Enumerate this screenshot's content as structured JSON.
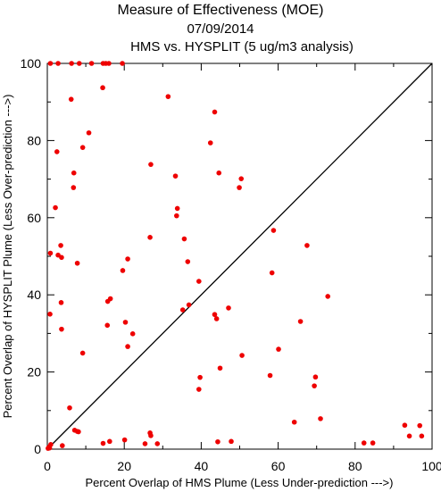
{
  "chart_data": {
    "type": "scatter",
    "title": "Measure of Effectiveness (MOE)",
    "date": "07/09/2014",
    "subtitle": "HMS vs. HYSPLIT  (5 ug/m3 analysis)",
    "xlabel": "Percent Overlap of HMS Plume (Less Under-prediction --->)",
    "ylabel": "Percent Overlap of HYSPLIT Plume (Less Over-prediction --->)",
    "xlim": [
      0,
      100
    ],
    "ylim": [
      0,
      100
    ],
    "x_ticks": [
      "0",
      "20",
      "40",
      "60",
      "80",
      "100"
    ],
    "y_ticks": [
      "0",
      "20",
      "40",
      "60",
      "80",
      "100"
    ],
    "grid": false,
    "reference_line": "diagonal y = x",
    "marker_color": "#ee0000",
    "points": [
      {
        "x": 0.8,
        "y": 100
      },
      {
        "x": 2.8,
        "y": 100
      },
      {
        "x": 6.3,
        "y": 100
      },
      {
        "x": 8.3,
        "y": 100
      },
      {
        "x": 11.5,
        "y": 100
      },
      {
        "x": 14.5,
        "y": 100
      },
      {
        "x": 15.2,
        "y": 100
      },
      {
        "x": 16,
        "y": 100
      },
      {
        "x": 19.5,
        "y": 100
      },
      {
        "x": 6.2,
        "y": 90.7
      },
      {
        "x": 14.4,
        "y": 93.7
      },
      {
        "x": 31.4,
        "y": 91.4
      },
      {
        "x": 43.5,
        "y": 87.4
      },
      {
        "x": 10.8,
        "y": 82
      },
      {
        "x": 42.4,
        "y": 79.4
      },
      {
        "x": 9.2,
        "y": 78.2
      },
      {
        "x": 2.5,
        "y": 77.1
      },
      {
        "x": 26.9,
        "y": 73.8
      },
      {
        "x": 6.9,
        "y": 71.6
      },
      {
        "x": 33.3,
        "y": 70.8
      },
      {
        "x": 44.6,
        "y": 71.6
      },
      {
        "x": 50.4,
        "y": 70.1
      },
      {
        "x": 49.9,
        "y": 67.8
      },
      {
        "x": 6.8,
        "y": 67.8
      },
      {
        "x": 2.1,
        "y": 62.6
      },
      {
        "x": 33.8,
        "y": 62.4
      },
      {
        "x": 33.6,
        "y": 60.5
      },
      {
        "x": 58.8,
        "y": 56.7
      },
      {
        "x": 26.7,
        "y": 54.9
      },
      {
        "x": 35.6,
        "y": 54.5
      },
      {
        "x": 3.5,
        "y": 52.8
      },
      {
        "x": 67.5,
        "y": 52.8
      },
      {
        "x": 0.8,
        "y": 50.8
      },
      {
        "x": 2.8,
        "y": 50.3
      },
      {
        "x": 3.7,
        "y": 49.7
      },
      {
        "x": 20.9,
        "y": 49.3
      },
      {
        "x": 36.5,
        "y": 48.6
      },
      {
        "x": 7.8,
        "y": 48.2
      },
      {
        "x": 19.6,
        "y": 46.3
      },
      {
        "x": 58.4,
        "y": 45.7
      },
      {
        "x": 39.4,
        "y": 43.5
      },
      {
        "x": 72.9,
        "y": 39.6
      },
      {
        "x": 16.4,
        "y": 39
      },
      {
        "x": 15.7,
        "y": 38.3
      },
      {
        "x": 3.6,
        "y": 38
      },
      {
        "x": 36.8,
        "y": 37.4
      },
      {
        "x": 47.1,
        "y": 36.6
      },
      {
        "x": 35.2,
        "y": 36.1
      },
      {
        "x": 0.7,
        "y": 35
      },
      {
        "x": 43.5,
        "y": 34.9
      },
      {
        "x": 44,
        "y": 33.8
      },
      {
        "x": 20.3,
        "y": 32.9
      },
      {
        "x": 65.8,
        "y": 33.1
      },
      {
        "x": 15.6,
        "y": 32.1
      },
      {
        "x": 3.7,
        "y": 31.1
      },
      {
        "x": 22.2,
        "y": 29.9
      },
      {
        "x": 20.9,
        "y": 26.6
      },
      {
        "x": 60.1,
        "y": 25.9
      },
      {
        "x": 9.2,
        "y": 24.9
      },
      {
        "x": 50.6,
        "y": 24.3
      },
      {
        "x": 44.9,
        "y": 21
      },
      {
        "x": 57.9,
        "y": 19.1
      },
      {
        "x": 39.7,
        "y": 18.6
      },
      {
        "x": 69.7,
        "y": 18.7
      },
      {
        "x": 69.4,
        "y": 16.4
      },
      {
        "x": 39.4,
        "y": 15.5
      },
      {
        "x": 5.8,
        "y": 10.7
      },
      {
        "x": 71,
        "y": 7.9
      },
      {
        "x": 64.2,
        "y": 7
      },
      {
        "x": 92.9,
        "y": 6.2
      },
      {
        "x": 96.8,
        "y": 6.1
      },
      {
        "x": 7.1,
        "y": 4.9
      },
      {
        "x": 7.8,
        "y": 4.6
      },
      {
        "x": 8.1,
        "y": 4.5
      },
      {
        "x": 26.7,
        "y": 4.2
      },
      {
        "x": 26.9,
        "y": 3.5
      },
      {
        "x": 94.1,
        "y": 3.4
      },
      {
        "x": 97.3,
        "y": 3.4
      },
      {
        "x": 20.1,
        "y": 2.4
      },
      {
        "x": 16.2,
        "y": 2
      },
      {
        "x": 44.3,
        "y": 1.9
      },
      {
        "x": 47.8,
        "y": 2
      },
      {
        "x": 14.5,
        "y": 1.5
      },
      {
        "x": 25.4,
        "y": 1.4
      },
      {
        "x": 28.6,
        "y": 1.4
      },
      {
        "x": 82.3,
        "y": 1.6
      },
      {
        "x": 84.6,
        "y": 1.6
      },
      {
        "x": 0.9,
        "y": 1.2
      },
      {
        "x": 3.9,
        "y": 0.9
      },
      {
        "x": 0.4,
        "y": 0.5
      },
      {
        "x": 0.2,
        "y": 0.2
      },
      {
        "x": 0.6,
        "y": 0.3
      }
    ]
  }
}
